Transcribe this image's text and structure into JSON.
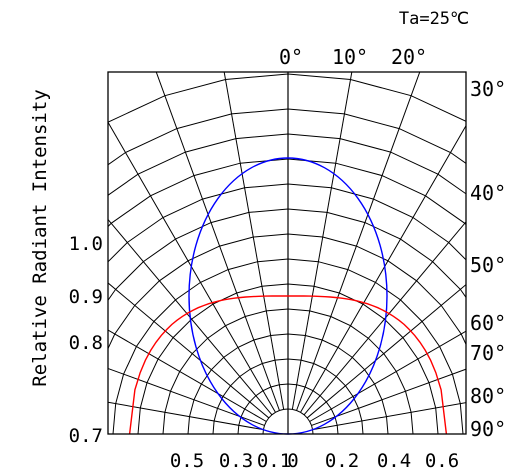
{
  "chart_data": {
    "type": "polar",
    "ylabel": "Relative Radiant Intensity",
    "condition": "Ta=25℃",
    "top_angle_labels": [
      "0°",
      "10°",
      "20°"
    ],
    "right_angle_labels": [
      "30°",
      "40°",
      "50°",
      "60°",
      "70°",
      "80°",
      "90°"
    ],
    "left_tick_labels": [
      "1.0",
      "0.9",
      "0.8",
      "0.7"
    ],
    "bottom_tick_labels": [
      "0.5",
      "0.3",
      "0.1",
      "0",
      "0.2",
      "0.4",
      "0.6"
    ],
    "grid": true,
    "series": [
      {
        "color": "#0000ff",
        "shape": "ellipse",
        "half_width": 0.55,
        "height": 1.0
      },
      {
        "color": "#ff0000",
        "shape": "arc",
        "half_width": 0.88,
        "height": 0.53
      }
    ]
  }
}
